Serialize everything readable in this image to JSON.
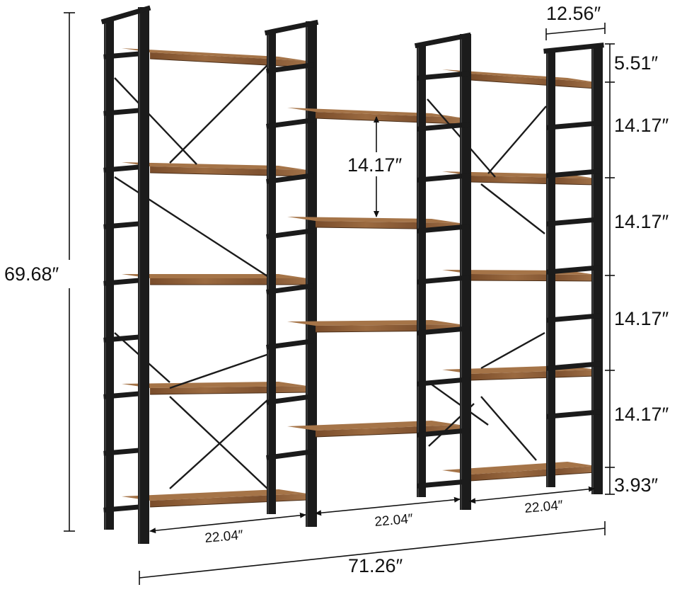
{
  "colors": {
    "frame": "#1b1b1b",
    "frame_edge": "#3a3a3a",
    "wood_top": "#8a5a34",
    "wood_front": "#6b4426",
    "wood_light": "#a57448",
    "dimension_line": "#111111",
    "background": "#ffffff"
  },
  "dimensions": {
    "total_height": "69.68″",
    "total_width": "71.26″",
    "depth": "12.56″",
    "top_gap": "5.51″",
    "shelf_spacing_1": "14.17″",
    "shelf_spacing_2": "14.17″",
    "shelf_spacing_3": "14.17″",
    "shelf_spacing_4": "14.17″",
    "bottom_clearance": "3.93″",
    "center_spacing": "14.17″",
    "width_left": "22.04″",
    "width_center": "22.04″",
    "width_right": "22.04″"
  },
  "product": {
    "units": 3,
    "left_unit_shelves": 5,
    "center_unit_shelves": 4,
    "right_unit_shelves": 5,
    "frame_icon": "metal-frame-icon",
    "cross_brace_icon": "x-brace-icon"
  }
}
